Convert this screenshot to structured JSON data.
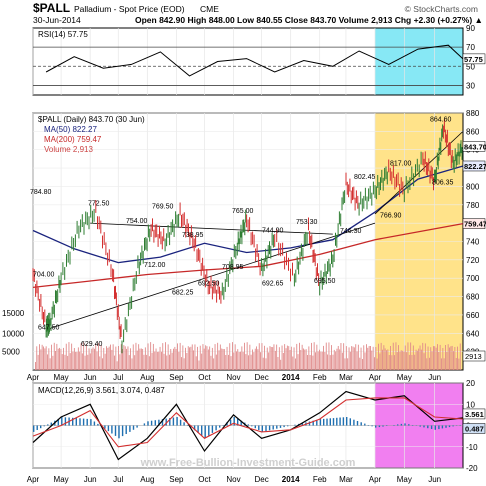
{
  "header": {
    "symbol": "$PALL",
    "name": "Palladium - Spot Price (EOD)",
    "exchange": "CME",
    "watermark": "© StockCharts.com",
    "date": "30-Jun-2014",
    "quote": "Open 842.90  High 848.00  Low 840.55  Close 843.70  Volume 2,913  Chg +2.30 (+0.27%) ▲"
  },
  "footer": {
    "brand": "www.Free-Bullion-Investment-Guide.com"
  },
  "colors": {
    "price_up": "#2e7d32",
    "price_down": "#d32f2f",
    "ma50": "#1a237e",
    "ma200": "#c62828",
    "volume": "#e08a8a",
    "rsi_highlight": "#87e8f5",
    "price_highlight": "#ffe38a",
    "macd_highlight": "#f17ff0",
    "macd_histogram": "#1f6fb0"
  },
  "chart_data": [
    {
      "type": "line",
      "panel": "rsi",
      "legend": "RSI(14) 57.75",
      "ylim": [
        20,
        90
      ],
      "yticks": [
        90,
        70,
        50,
        30
      ],
      "reference_lines": [
        70,
        50,
        30
      ],
      "last_value": "57.75",
      "x": [
        "2013-04",
        "2013-05",
        "2013-06",
        "2013-07",
        "2013-08",
        "2013-09",
        "2013-10",
        "2013-11",
        "2013-12",
        "2014-01",
        "2014-02",
        "2014-03",
        "2014-04",
        "2014-05",
        "2014-06",
        "2014-06-30"
      ],
      "values": [
        44,
        60,
        48,
        52,
        65,
        40,
        55,
        58,
        44,
        56,
        50,
        66,
        52,
        68,
        72,
        57.75
      ]
    },
    {
      "type": "line",
      "panel": "price",
      "legend": [
        "$PALL (Daily) 843.70 (30 Jun)",
        "MA(50) 822.27",
        "MA(200) 759.47",
        "Volume 2,913"
      ],
      "ylim": [
        600,
        880
      ],
      "yticks": [
        880,
        860,
        840,
        820,
        800,
        780,
        760,
        740,
        720,
        700,
        680,
        660,
        640,
        620
      ],
      "volume_ticks": [
        "15000",
        "10000",
        "5000"
      ],
      "price_tags": [
        "843.70",
        "822.27",
        "759.47"
      ],
      "volume_tag": "2913",
      "annotations": [
        "784.80",
        "772.50",
        "754.00",
        "769.50",
        "738.95",
        "765.00",
        "744.90",
        "753.30",
        "802.45",
        "817.00",
        "864.60",
        "712.00",
        "692.50",
        "682.25",
        "708.95",
        "692.65",
        "695.50",
        "746.30",
        "766.90",
        "806.35",
        "704.00",
        "647.50",
        "629.40"
      ],
      "x_labels": [
        "Apr",
        "May",
        "Jun",
        "Jul",
        "Aug",
        "Sep",
        "Oct",
        "Nov",
        "Dec",
        "2014",
        "Feb",
        "Mar",
        "Apr",
        "May",
        "Jun"
      ],
      "price_series": {
        "name": "$PALL",
        "x": [
          "2013-04-01",
          "2013-04-15",
          "2013-04-19",
          "2013-05-01",
          "2013-05-20",
          "2013-06-07",
          "2013-06-25",
          "2013-07-05",
          "2013-07-22",
          "2013-08-05",
          "2013-08-20",
          "2013-09-05",
          "2013-09-20",
          "2013-10-05",
          "2013-10-20",
          "2013-11-05",
          "2013-11-15",
          "2013-12-01",
          "2013-12-15",
          "2014-01-05",
          "2014-01-20",
          "2014-02-01",
          "2014-02-15",
          "2014-03-01",
          "2014-03-15",
          "2014-04-01",
          "2014-04-15",
          "2014-05-01",
          "2014-05-20",
          "2014-06-01",
          "2014-06-10",
          "2014-06-20",
          "2014-06-30"
        ],
        "values": [
          704,
          647.5,
          650,
          700,
          755,
          772.5,
          705,
          629.4,
          712,
          754,
          740,
          769.5,
          738.95,
          692.5,
          682.25,
          735,
          765,
          708.95,
          744.9,
          700,
          753.3,
          692.65,
          720,
          802.45,
          780,
          795,
          817,
          795,
          830,
          806.35,
          864.6,
          825,
          843.7
        ]
      },
      "ma50": {
        "name": "MA(50)",
        "x": [
          "2013-04-01",
          "2013-05-15",
          "2013-07-01",
          "2013-08-15",
          "2013-10-01",
          "2013-11-15",
          "2014-01-01",
          "2014-02-15",
          "2014-04-01",
          "2014-05-15",
          "2014-06-30"
        ],
        "values": [
          752,
          732,
          717,
          723,
          738,
          728,
          733,
          742,
          772,
          808,
          822.27
        ]
      },
      "ma200": {
        "name": "MA(200)",
        "x": [
          "2013-04-01",
          "2013-06-01",
          "2013-08-01",
          "2013-10-01",
          "2013-12-01",
          "2014-02-01",
          "2014-04-01",
          "2014-06-30"
        ],
        "values": [
          690,
          697,
          704,
          709,
          713,
          726,
          742,
          759.47
        ]
      }
    },
    {
      "type": "line",
      "panel": "macd",
      "legend": "MACD(12,26,9) 3.561, 3.074, 0.487",
      "ylim": [
        -20,
        20
      ],
      "yticks": [
        20,
        10,
        0,
        -10,
        -20
      ],
      "last_values": [
        "3.561",
        "3.074",
        "0.487"
      ],
      "x": [
        "2013-04-01",
        "2013-05-01",
        "2013-06-01",
        "2013-07-01",
        "2013-08-01",
        "2013-09-01",
        "2013-10-01",
        "2013-11-01",
        "2013-12-01",
        "2014-01-01",
        "2014-02-01",
        "2014-03-01",
        "2014-04-01",
        "2014-05-01",
        "2014-06-01",
        "2014-06-30"
      ],
      "series": [
        {
          "name": "MACD",
          "values": [
            -8,
            4,
            10,
            -16,
            -6,
            10,
            -12,
            5,
            -6,
            -2,
            6,
            16,
            12,
            14,
            2,
            3.561
          ]
        },
        {
          "name": "Signal",
          "values": [
            -5,
            0,
            7,
            -10,
            -8,
            6,
            -6,
            1,
            -3,
            -2,
            3,
            12,
            13,
            13,
            4,
            3.074
          ]
        }
      ]
    }
  ]
}
